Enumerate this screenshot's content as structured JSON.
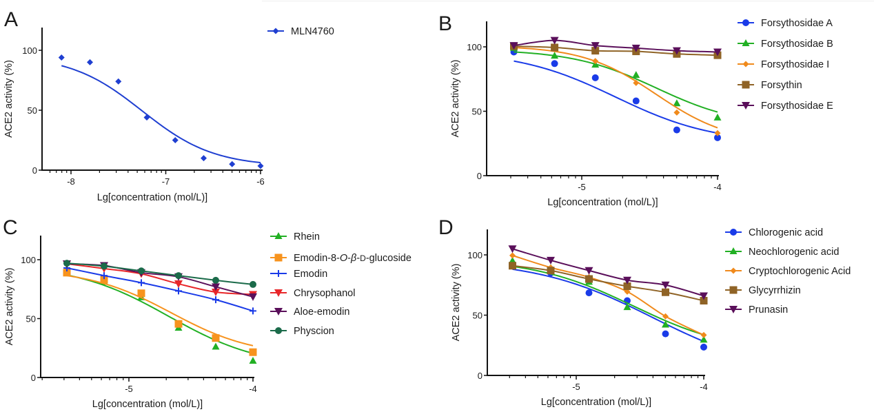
{
  "figure": {
    "description": "ACE2 activity inhibition dose-response curves"
  },
  "chart_data": [
    {
      "panel": "A",
      "type": "line",
      "title": "",
      "xlabel": "Lg[concentration (mol/L)]",
      "ylabel": "ACE2 activity (%)",
      "xlim": [
        -8.32,
        -6.0
      ],
      "ylim": [
        0,
        120
      ],
      "xticks": [
        -8,
        -7,
        -6
      ],
      "xtick_labels": [
        "-8",
        "-7",
        "-6"
      ],
      "yticks": [
        0,
        50,
        100
      ],
      "ytick_labels": [
        "0",
        "50",
        "100"
      ],
      "legend_position": "top-right",
      "x": [
        -8.1,
        -7.8,
        -7.5,
        -7.2,
        -6.9,
        -6.6,
        -6.3,
        -6.0
      ],
      "series": [
        {
          "name": "MLN4760",
          "color": "#1f3fd1",
          "marker": "diamond",
          "values": [
            94,
            90,
            74,
            44,
            25,
            10,
            5,
            3.5
          ],
          "fit": {
            "top": 96,
            "bottom": 3,
            "log_ic50": -7.25,
            "hill": -1.15
          }
        }
      ]
    },
    {
      "panel": "B",
      "type": "line",
      "title": "",
      "xlabel": "Lg[concentration (mol/L)]",
      "ylabel": "ACE2 activity (%)",
      "xlim": [
        -5.7,
        -4.0
      ],
      "ylim": [
        0,
        120
      ],
      "xticks": [
        -5,
        -4
      ],
      "xtick_labels": [
        "-5",
        "-4"
      ],
      "yticks": [
        0,
        50,
        100
      ],
      "ytick_labels": [
        "0",
        "50",
        "100"
      ],
      "legend_position": "right",
      "x": [
        -5.5,
        -5.2,
        -4.9,
        -4.6,
        -4.3,
        -4.0
      ],
      "series": [
        {
          "name": "Forsythosidae A",
          "color": "#1a3be8",
          "marker": "circle",
          "values": [
            96,
            87,
            76,
            58,
            35.5,
            29.5
          ],
          "fit": {
            "top": 97,
            "bottom": 25,
            "log_ic50": -4.75,
            "hill": -1.2
          }
        },
        {
          "name": "Forsythosidae B",
          "color": "#22b024",
          "marker": "triangle",
          "values": [
            99,
            93,
            86,
            78,
            56,
            45
          ],
          "fit": {
            "top": 98,
            "bottom": 38,
            "log_ic50": -4.45,
            "hill": -1.4
          }
        },
        {
          "name": "Forsythosidae I",
          "color": "#f08a1c",
          "marker": "diamond",
          "values": [
            100,
            98,
            89,
            72,
            49,
            33
          ],
          "fit": {
            "top": 101,
            "bottom": 25,
            "log_ic50": -4.45,
            "hill": -1.6
          }
        },
        {
          "name": "Forsythin",
          "color": "#8f6326",
          "marker": "square",
          "values": [
            100.5,
            99.5,
            97,
            96.5,
            94.5,
            93.5
          ]
        },
        {
          "name": "Forsythosidae E",
          "color": "#5a0f5a",
          "marker": "triangle-down",
          "values": [
            101,
            105,
            101,
            99,
            97,
            96
          ]
        }
      ]
    },
    {
      "panel": "C",
      "type": "line",
      "title": "",
      "xlabel": "Lg[concentration (mol/L)]",
      "ylabel": "ACE2 activity (%)",
      "xlim": [
        -5.7,
        -4.0
      ],
      "ylim": [
        0,
        120
      ],
      "xticks": [
        -5,
        -4
      ],
      "xtick_labels": [
        "-5",
        "-4"
      ],
      "yticks": [
        0,
        50,
        100
      ],
      "ytick_labels": [
        "0",
        "50",
        "100"
      ],
      "legend_position": "right",
      "x": [
        -5.5,
        -5.2,
        -4.9,
        -4.6,
        -4.3,
        -4.0
      ],
      "series": [
        {
          "name": "Rhein",
          "color": "#22b024",
          "marker": "triangle",
          "values": [
            92,
            81,
            68,
            42,
            26,
            14
          ],
          "fit": {
            "top": 96,
            "bottom": 8,
            "log_ic50": -4.68,
            "hill": -1.15
          }
        },
        {
          "name": "Emodin-8-O-β-D-glucoside",
          "name_parts": [
            "Emodin-8-",
            "O",
            "-",
            "β",
            "-",
            "D",
            "-glucoside"
          ],
          "color": "#f7931e",
          "marker": "square",
          "values": [
            89,
            83,
            71.5,
            45.5,
            33.5,
            21.5
          ],
          "fit": {
            "top": 92,
            "bottom": 18,
            "log_ic50": -4.66,
            "hill": -1.3
          }
        },
        {
          "name": "Emodin",
          "color": "#1a3be8",
          "marker": "plus",
          "values": [
            93,
            86.5,
            80.5,
            73.5,
            66,
            56.5
          ]
        },
        {
          "name": "Chrysophanol",
          "color": "#e8272a",
          "marker": "triangle-down",
          "values": [
            96.5,
            92.5,
            88,
            79.5,
            72.5,
            70.5
          ]
        },
        {
          "name": "Aloe-emodin",
          "color": "#5a0f5a",
          "marker": "triangle-down",
          "values": [
            96.5,
            95,
            89,
            85.5,
            77,
            68.5
          ]
        },
        {
          "name": "Physcion",
          "color": "#1b6b4a",
          "marker": "circle",
          "values": [
            97,
            94.5,
            90.5,
            86.5,
            82.5,
            79
          ]
        }
      ]
    },
    {
      "panel": "D",
      "type": "line",
      "title": "",
      "xlabel": "Lg[concentration (mol/L)]",
      "ylabel": "ACE2 activity (%)",
      "xlim": [
        -5.7,
        -4.0
      ],
      "ylim": [
        0,
        120
      ],
      "xticks": [
        -5,
        -4
      ],
      "xtick_labels": [
        "-5",
        "-4"
      ],
      "yticks": [
        0,
        50,
        100
      ],
      "ytick_labels": [
        "0",
        "50",
        "100"
      ],
      "legend_position": "right",
      "x": [
        -5.5,
        -5.2,
        -4.9,
        -4.6,
        -4.3,
        -4.0
      ],
      "series": [
        {
          "name": "Chlorogenic acid",
          "color": "#1a3be8",
          "marker": "circle",
          "values": [
            92.5,
            85,
            68.5,
            62,
            34.5,
            23.5
          ],
          "fit": {
            "top": 96,
            "bottom": 0,
            "log_ic50": -4.4,
            "hill": -0.95
          }
        },
        {
          "name": "Neochlorogenic acid",
          "color": "#22b024",
          "marker": "triangle",
          "values": [
            95,
            89,
            77.5,
            56.5,
            42,
            29.5
          ],
          "fit": {
            "top": 97,
            "bottom": 18,
            "log_ic50": -4.55,
            "hill": -1.1
          }
        },
        {
          "name": "Cryptochlorogenic Acid",
          "color": "#f08a1c",
          "marker": "diamond",
          "values": [
            99.5,
            89.5,
            81.5,
            69.5,
            49,
            33.5
          ]
        },
        {
          "name": "Glycyrrhizin",
          "color": "#8f6326",
          "marker": "square",
          "values": [
            91,
            87,
            80,
            74,
            69,
            62
          ]
        },
        {
          "name": "Prunasin",
          "color": "#5a0f5a",
          "marker": "triangle-down",
          "values": [
            105,
            95.5,
            87,
            79,
            75,
            66
          ]
        }
      ]
    }
  ]
}
